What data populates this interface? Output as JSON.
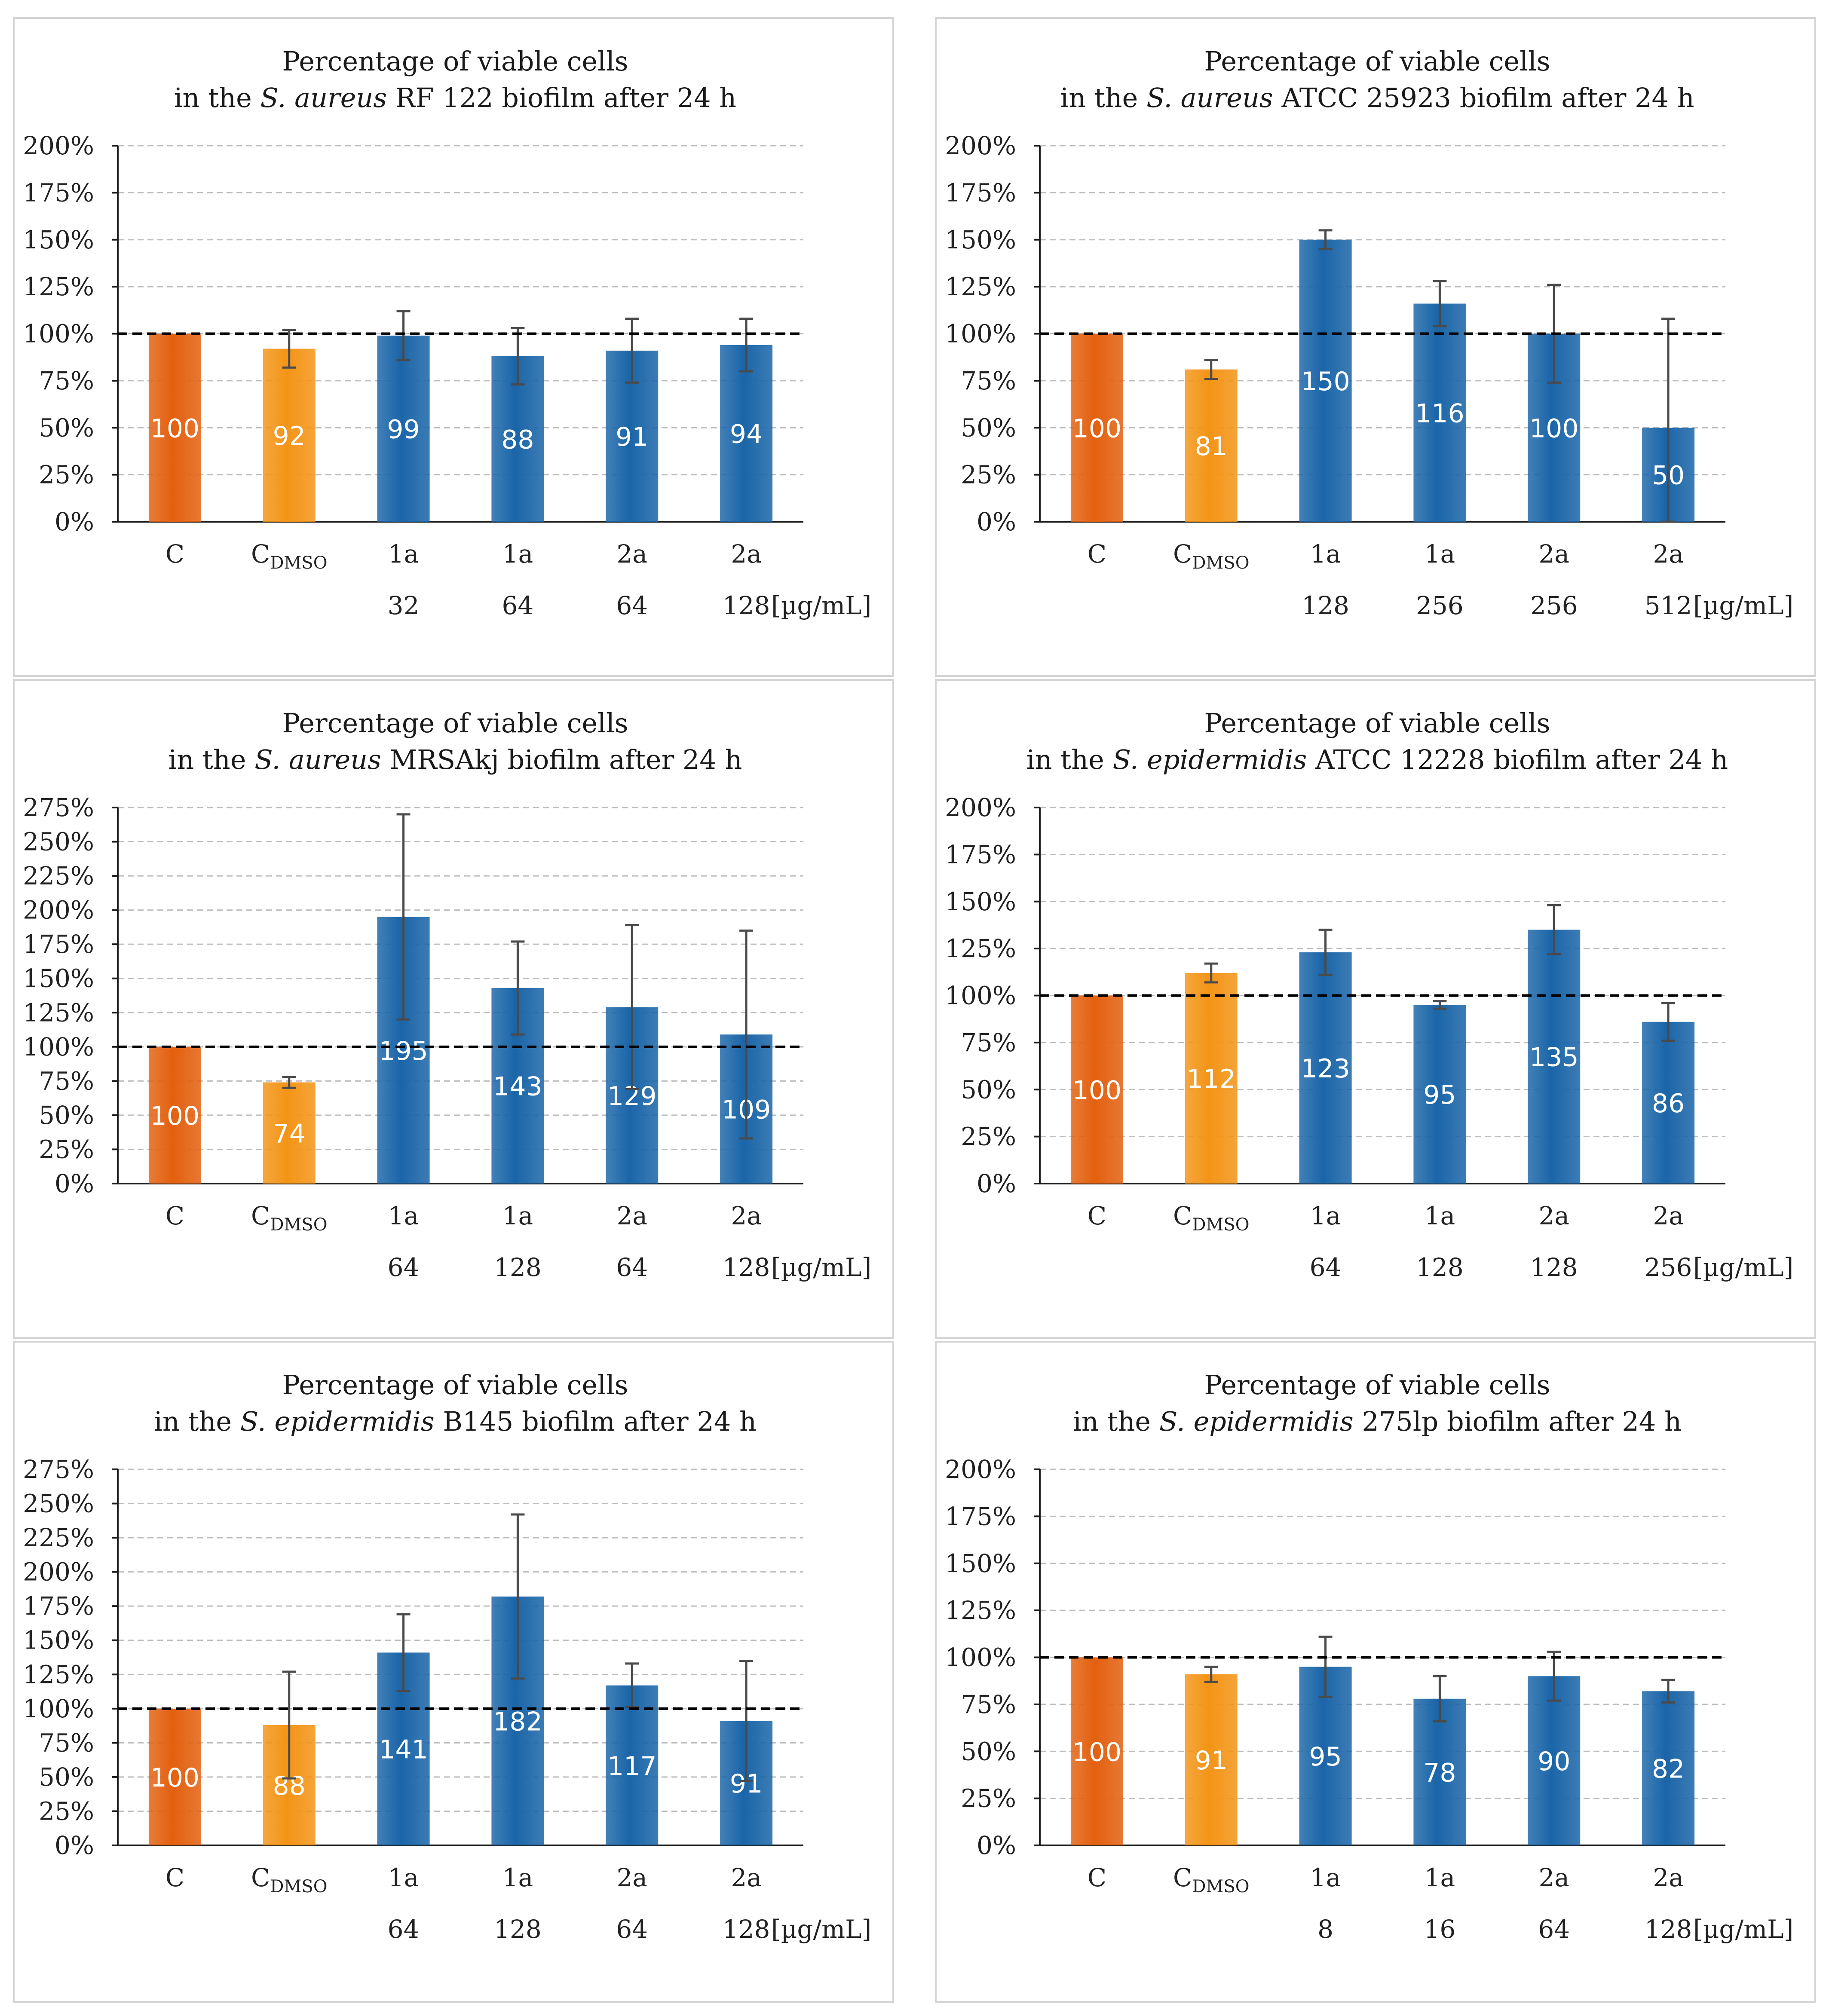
{
  "colors": {
    "control": "#e3600f",
    "dmso": "#f39416",
    "compound": "#1a65a8"
  },
  "unit_label": "[µg/mL]",
  "chart_data": [
    {
      "type": "bar",
      "title_line1": "Percentage of viable cells",
      "title_pre": "in the ",
      "title_species": "S. aureus",
      "title_post": " RF 122 biofilm after 24 h",
      "ylim": [
        0,
        200
      ],
      "yticks": [
        0,
        25,
        50,
        75,
        100,
        125,
        150,
        175,
        200
      ],
      "categories": [
        "C",
        "C_DMSO",
        "1a",
        "1a",
        "2a",
        "2a"
      ],
      "concentrations": [
        "",
        "",
        "32",
        "64",
        "64",
        "128"
      ],
      "values": [
        100,
        92,
        99,
        88,
        91,
        94
      ],
      "errors": [
        0,
        10,
        13,
        15,
        17,
        14
      ],
      "reference": 100
    },
    {
      "type": "bar",
      "title_line1": "Percentage of viable cells",
      "title_pre": "in the ",
      "title_species": "S. aureus",
      "title_post": " ATCC 25923 biofilm after 24 h",
      "ylim": [
        0,
        200
      ],
      "yticks": [
        0,
        25,
        50,
        75,
        100,
        125,
        150,
        175,
        200
      ],
      "categories": [
        "C",
        "C_DMSO",
        "1a",
        "1a",
        "2a",
        "2a"
      ],
      "concentrations": [
        "",
        "",
        "128",
        "256",
        "256",
        "512"
      ],
      "values": [
        100,
        81,
        150,
        116,
        100,
        50
      ],
      "errors": [
        0,
        5,
        5,
        12,
        26,
        58
      ],
      "reference": 100
    },
    {
      "type": "bar",
      "title_line1": "Percentage of viable cells",
      "title_pre": "in the ",
      "title_species": "S. aureus",
      "title_post": " MRSAkj biofilm after 24 h",
      "ylim": [
        0,
        275
      ],
      "yticks": [
        0,
        25,
        50,
        75,
        100,
        125,
        150,
        175,
        200,
        225,
        250,
        275
      ],
      "categories": [
        "C",
        "C_DMSO",
        "1a",
        "1a",
        "2a",
        "2a"
      ],
      "concentrations": [
        "",
        "",
        "64",
        "128",
        "64",
        "128"
      ],
      "values": [
        100,
        74,
        195,
        143,
        129,
        109
      ],
      "errors": [
        0,
        4,
        75,
        34,
        60,
        76
      ],
      "reference": 100
    },
    {
      "type": "bar",
      "title_line1": "Percentage of viable cells",
      "title_pre": "in the ",
      "title_species": "S. epidermidis",
      "title_post": " ATCC 12228 biofilm after 24 h",
      "ylim": [
        0,
        200
      ],
      "yticks": [
        0,
        25,
        50,
        75,
        100,
        125,
        150,
        175,
        200
      ],
      "categories": [
        "C",
        "C_DMSO",
        "1a",
        "1a",
        "2a",
        "2a"
      ],
      "concentrations": [
        "",
        "",
        "64",
        "128",
        "128",
        "256"
      ],
      "values": [
        100,
        112,
        123,
        95,
        135,
        86
      ],
      "errors": [
        0,
        5,
        12,
        2,
        13,
        10
      ],
      "reference": 100
    },
    {
      "type": "bar",
      "title_line1": "Percentage of viable cells",
      "title_pre": "in the ",
      "title_species": "S. epidermidis",
      "title_post": " B145 biofilm after 24 h",
      "ylim": [
        0,
        275
      ],
      "yticks": [
        0,
        25,
        50,
        75,
        100,
        125,
        150,
        175,
        200,
        225,
        250,
        275
      ],
      "categories": [
        "C",
        "C_DMSO",
        "1a",
        "1a",
        "2a",
        "2a"
      ],
      "concentrations": [
        "",
        "",
        "64",
        "128",
        "64",
        "128"
      ],
      "values": [
        100,
        88,
        141,
        182,
        117,
        91
      ],
      "errors": [
        0,
        39,
        28,
        60,
        16,
        44
      ],
      "reference": 100
    },
    {
      "type": "bar",
      "title_line1": "Percentage of viable cells",
      "title_pre": "in the ",
      "title_species": "S. epidermidis",
      "title_post": " 275lp biofilm after 24 h",
      "ylim": [
        0,
        200
      ],
      "yticks": [
        0,
        25,
        50,
        75,
        100,
        125,
        150,
        175,
        200
      ],
      "categories": [
        "C",
        "C_DMSO",
        "1a",
        "1a",
        "2a",
        "2a"
      ],
      "concentrations": [
        "",
        "",
        "8",
        "16",
        "64",
        "128"
      ],
      "values": [
        100,
        91,
        95,
        78,
        90,
        82
      ],
      "errors": [
        0,
        4,
        16,
        12,
        13,
        6
      ],
      "reference": 100
    }
  ]
}
